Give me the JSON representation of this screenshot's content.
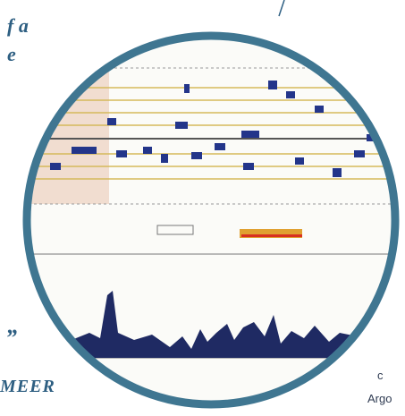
{
  "margin_text": {
    "line1": "f a",
    "line2": "e",
    "quote": "”",
    "author": "MEER",
    "side1": "c",
    "side2": "Argo"
  }
}
